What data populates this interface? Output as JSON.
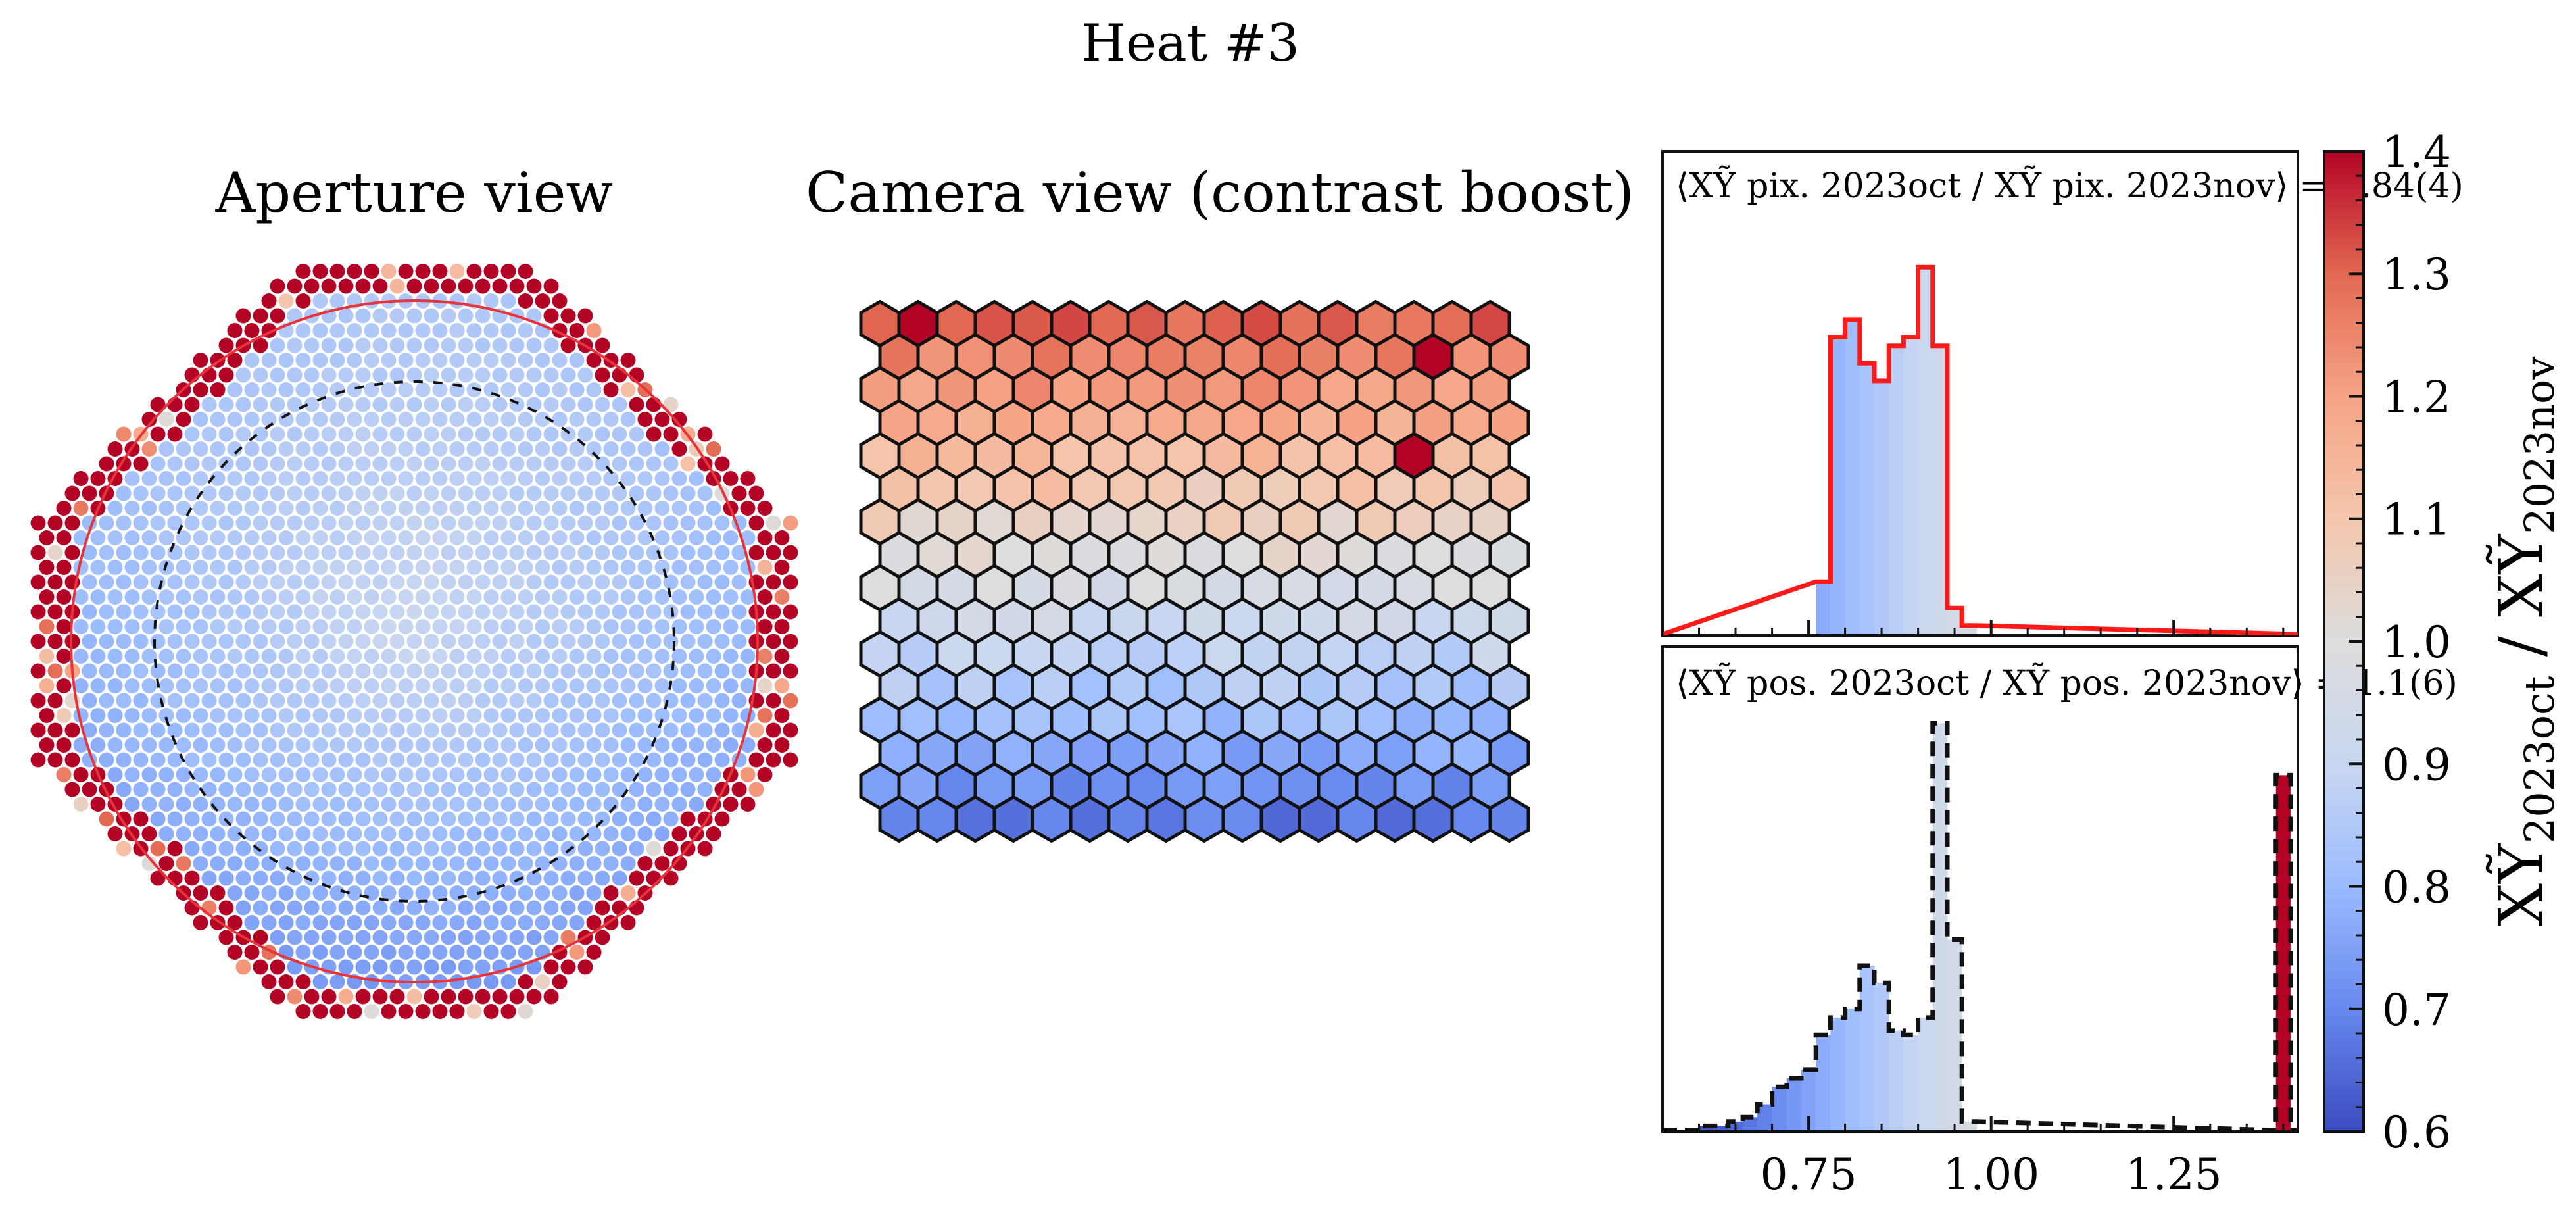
{
  "figure": {
    "title": "Heat #3",
    "panel_aperture_title": "Aperture view",
    "panel_camera_title": "Camera view (contrast boost)"
  },
  "colormap": {
    "name": "coolwarm",
    "stops": [
      "#3b4cc0",
      "#6788ee",
      "#9abbff",
      "#c9d7f0",
      "#dddddd",
      "#f4c6ac",
      "#f6a385",
      "#e26952",
      "#b40426"
    ],
    "vmin": 0.6,
    "vmax": 1.4
  },
  "colorbar": {
    "label": "XỸ 2023oct / XỸ 2023nov",
    "label_num": "XỸ",
    "label_num_sub": "2023oct",
    "label_sep": " / ",
    "label_den": "XỸ",
    "label_den_sub": "2023nov",
    "ticks": [
      "0.6",
      "0.7",
      "0.8",
      "0.9",
      "1.0",
      "1.1",
      "1.2",
      "1.3",
      "1.4"
    ]
  },
  "annotations": {
    "pix_label": "⟨XỸ pix. 2023oct / XỸ pix. 2023nov⟩ = 0.84(4)",
    "pos_label": "⟨XỸ pos. 2023oct / XỸ pos. 2023nov⟩ = 1.1(6)"
  },
  "chart_data": [
    {
      "type": "heatmap",
      "name": "Aperture view",
      "description_of_pattern": "octagonal aperture of ~0.8-0.95 ratio cells, outer ring saturated at 1.4",
      "center_value": 0.9,
      "edge_value": 0.78,
      "outer_ring_value": 1.4
    },
    {
      "type": "heatmap",
      "name": "Camera view (contrast boost)",
      "grid_rows": 16,
      "grid_cols": 17,
      "top_value": 1.3,
      "bottom_value": 0.68
    },
    {
      "type": "bar",
      "name": "pix histogram",
      "xlim": [
        0.55,
        1.42
      ],
      "mean": 0.84,
      "x": [
        0.76,
        0.78,
        0.8,
        0.82,
        0.84,
        0.86,
        0.88,
        0.9,
        0.92,
        0.94,
        0.96
      ],
      "values": [
        0.12,
        0.68,
        0.72,
        0.62,
        0.58,
        0.66,
        0.68,
        0.84,
        0.66,
        0.06,
        0.02
      ]
    },
    {
      "type": "bar",
      "name": "pos histogram",
      "xlim": [
        0.55,
        1.42
      ],
      "xticks": [
        "0.75",
        "1.00",
        "1.25"
      ],
      "mean": 1.1,
      "x": [
        0.58,
        0.6,
        0.62,
        0.64,
        0.66,
        0.68,
        0.7,
        0.72,
        0.74,
        0.76,
        0.78,
        0.8,
        0.82,
        0.84,
        0.86,
        0.88,
        0.9,
        0.92,
        0.94,
        0.96
      ],
      "values": [
        0.0,
        0.01,
        0.01,
        0.02,
        0.03,
        0.06,
        0.1,
        0.12,
        0.14,
        0.22,
        0.26,
        0.28,
        0.38,
        0.34,
        0.23,
        0.22,
        0.26,
        0.94,
        0.44,
        0.02
      ],
      "peak_x": 1.4,
      "peak_value": 0.82
    }
  ]
}
